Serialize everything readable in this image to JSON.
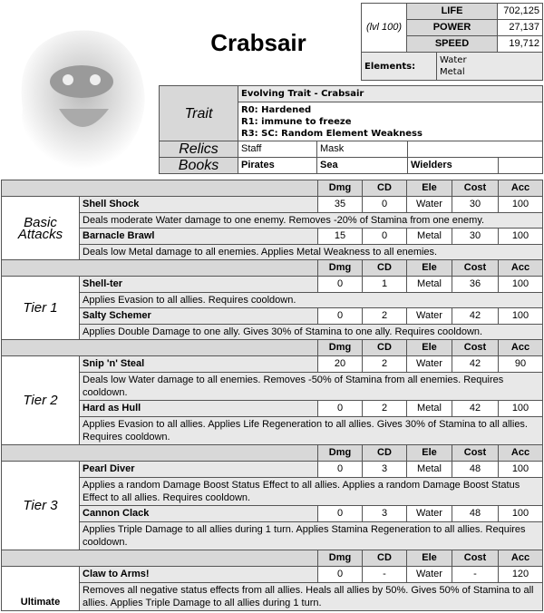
{
  "title": "Crabsair",
  "stats": {
    "level": "(lvl 100)",
    "life_label": "LIFE",
    "life": "702,125",
    "power_label": "POWER",
    "power": "27,137",
    "speed_label": "SPEED",
    "speed": "19,712",
    "elements_label": "Elements:",
    "elements": [
      "Water",
      "Metal"
    ]
  },
  "trait": {
    "label": "Trait",
    "name": "Evolving Trait - Crabsair",
    "lines": [
      "R0: Hardened",
      "R1: immune to freeze",
      "R3: SC: Random Element Weakness"
    ]
  },
  "relics": {
    "label": "Relics",
    "items": [
      "Staff",
      "Mask"
    ]
  },
  "books": {
    "label": "Books",
    "items": [
      "Pirates",
      "Sea",
      "Wielders"
    ]
  },
  "columns": [
    "Dmg",
    "CD",
    "Ele",
    "Cost",
    "Acc"
  ],
  "sections": [
    {
      "label": "Basic Attacks",
      "skills": [
        {
          "name": "Shell Shock",
          "dmg": "35",
          "cd": "0",
          "ele": "Water",
          "cost": "30",
          "acc": "100",
          "desc": "Deals moderate Water damage to one enemy. Removes -20% of Stamina from one enemy."
        },
        {
          "name": "Barnacle Brawl",
          "dmg": "15",
          "cd": "0",
          "ele": "Metal",
          "cost": "30",
          "acc": "100",
          "desc": "Deals low Metal damage to all enemies. Applies Metal Weakness to all enemies."
        }
      ]
    },
    {
      "label": "Tier 1",
      "skills": [
        {
          "name": "Shell-ter",
          "dmg": "0",
          "cd": "1",
          "ele": "Metal",
          "cost": "36",
          "acc": "100",
          "desc": "Applies Evasion to all allies. Requires cooldown."
        },
        {
          "name": "Salty Schemer",
          "dmg": "0",
          "cd": "2",
          "ele": "Water",
          "cost": "42",
          "acc": "100",
          "desc": "Applies Double Damage to one ally. Gives 30% of Stamina to one ally. Requires cooldown."
        }
      ]
    },
    {
      "label": "Tier 2",
      "skills": [
        {
          "name": "Snip 'n' Steal",
          "dmg": "20",
          "cd": "2",
          "ele": "Water",
          "cost": "42",
          "acc": "90",
          "desc": "Deals low Water damage to all enemies. Removes -50% of Stamina from all enemies. Requires cooldown."
        },
        {
          "name": "Hard as Hull",
          "dmg": "0",
          "cd": "2",
          "ele": "Metal",
          "cost": "42",
          "acc": "100",
          "desc": "Applies Evasion to all allies. Applies Life Regeneration to all allies. Gives 30% of Stamina to all allies. Requires cooldown."
        }
      ]
    },
    {
      "label": "Tier 3",
      "skills": [
        {
          "name": "Pearl Diver",
          "dmg": "0",
          "cd": "3",
          "ele": "Metal",
          "cost": "48",
          "acc": "100",
          "desc": "Applies a random Damage Boost Status Effect to all allies. Applies a random Damage Boost Status Effect to all allies. Requires cooldown."
        },
        {
          "name": "Cannon Clack",
          "dmg": "0",
          "cd": "3",
          "ele": "Water",
          "cost": "48",
          "acc": "100",
          "desc": "Applies Triple Damage to all allies during 1 turn. Applies Stamina Regeneration to all allies. Requires cooldown."
        }
      ]
    },
    {
      "label": "Ultimate",
      "skills": [
        {
          "name": "Claw to Arms!",
          "dmg": "0",
          "cd": "-",
          "ele": "Water",
          "cost": "-",
          "acc": "120",
          "desc": "Removes all negative status effects from all allies. Heals all allies by 50%. Gives 50% of Stamina to all allies. Applies Triple Damage to all allies during 1 turn."
        }
      ]
    }
  ]
}
